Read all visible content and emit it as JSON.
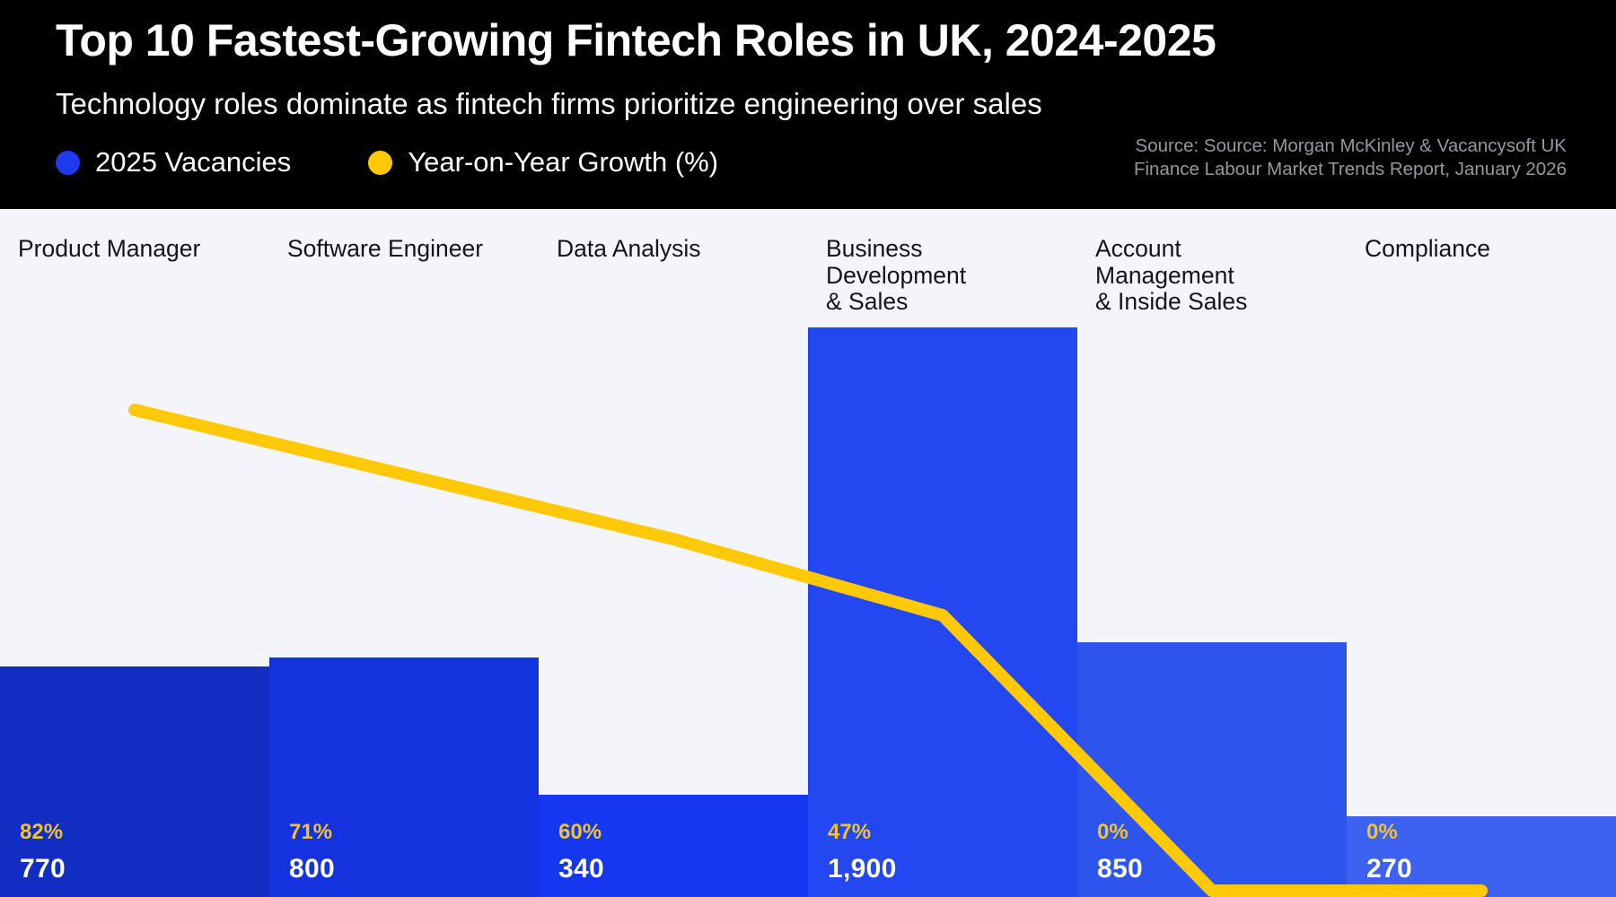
{
  "header": {
    "title": "Top 10 Fastest-Growing Fintech Roles in UK, 2024-2025",
    "subtitle": "Technology roles dominate as fintech firms prioritize engineering over sales",
    "legend": [
      {
        "label": "2025 Vacancies",
        "color": "#2038EE"
      },
      {
        "label": "Year-on-Year Growth (%)",
        "color": "#FFC907"
      }
    ],
    "source_line1": "Source: Source: Morgan McKinley & Vacancysoft UK",
    "source_line2": "Finance Labour Market Trends Report, January 2026"
  },
  "chart_data": {
    "type": "bar+line",
    "categories": [
      "Product Manager",
      "Software Engineer",
      "Data Analysis",
      "Business Development & Sales",
      "Account Management & Inside Sales",
      "Compliance"
    ],
    "series": [
      {
        "name": "2025 Vacancies",
        "type": "bar",
        "values": [
          770,
          800,
          340,
          1900,
          850,
          270
        ]
      },
      {
        "name": "Year-on-Year Growth (%)",
        "type": "line",
        "unit": "%",
        "values": [
          82,
          71,
          60,
          47,
          0,
          0
        ]
      }
    ],
    "bar_colors": [
      "#122EC2",
      "#1432DE",
      "#1537F0",
      "#2347F0",
      "#2E54EE",
      "#3D62F2"
    ],
    "line_color": "#FFC907",
    "pct_label_color": "#F2C32C",
    "background_color": "#F4F5FB",
    "legend_position": "top-left",
    "grid": false,
    "columns": [
      {
        "line1": "Product Manager",
        "line2": "",
        "line3": "",
        "pct_label": "82%",
        "value_label": "770"
      },
      {
        "line1": "Software Engineer",
        "line2": "",
        "line3": "",
        "pct_label": "71%",
        "value_label": "800"
      },
      {
        "line1": "Data Analysis",
        "line2": "",
        "line3": "",
        "pct_label": "60%",
        "value_label": "340"
      },
      {
        "line1": "Business",
        "line2": "Development",
        "line3": "& Sales",
        "pct_label": "47%",
        "value_label": "1,900"
      },
      {
        "line1": "Account",
        "line2": "Management",
        "line3": "& Inside Sales",
        "pct_label": "0%",
        "value_label": "850"
      },
      {
        "line1": "Compliance",
        "line2": "",
        "line3": "",
        "pct_label": "0%",
        "value_label": "270"
      }
    ]
  }
}
